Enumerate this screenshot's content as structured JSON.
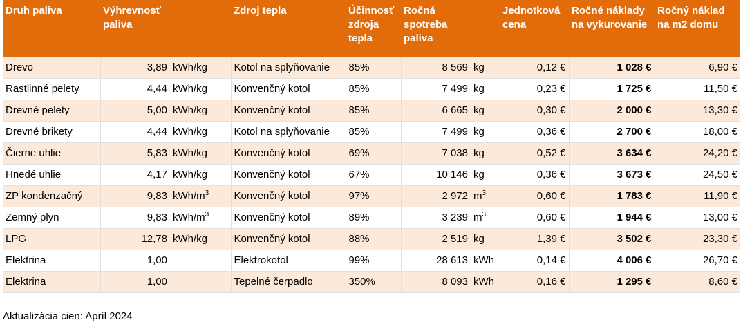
{
  "headers": [
    "Druh paliva",
    "Výhrevnosť paliva",
    "",
    "Zdroj tepla",
    "Účinnosť zdroja tepla",
    "Ročná spotreba paliva",
    "",
    "Jednotková cena",
    "Ročné náklady na vykurovanie",
    "Ročný náklad na m2 domu"
  ],
  "rows": [
    {
      "fuel": "Drevo",
      "value": "3,89",
      "unit": "kWh/kg",
      "source": "Kotol na splyňovanie",
      "eff": "85%",
      "cons": "8 569",
      "cunit": "kg",
      "price": "0,12 €",
      "annual": "1 028 €",
      "per_m2": "6,90 €"
    },
    {
      "fuel": "Rastlinné pelety",
      "value": "4,44",
      "unit": "kWh/kg",
      "source": "Konvenčný kotol",
      "eff": "85%",
      "cons": "7 499",
      "cunit": "kg",
      "price": "0,23 €",
      "annual": "1 725 €",
      "per_m2": "11,50 €"
    },
    {
      "fuel": "Drevné pelety",
      "value": "5,00",
      "unit": "kWh/kg",
      "source": "Konvenčný kotol",
      "eff": "85%",
      "cons": "6 665",
      "cunit": "kg",
      "price": "0,30 €",
      "annual": "2 000 €",
      "per_m2": "13,30 €"
    },
    {
      "fuel": "Drevné brikety",
      "value": "4,44",
      "unit": "kWh/kg",
      "source": "Kotol na splyňovanie",
      "eff": "85%",
      "cons": "7 499",
      "cunit": "kg",
      "price": "0,36 €",
      "annual": "2 700 €",
      "per_m2": "18,00 €"
    },
    {
      "fuel": "Čierne uhlie",
      "value": "5,83",
      "unit": "kWh/kg",
      "source": "Konvenčný kotol",
      "eff": "69%",
      "cons": "7 038",
      "cunit": "kg",
      "price": "0,52 €",
      "annual": "3 634 €",
      "per_m2": "24,20 €"
    },
    {
      "fuel": "Hnedé uhlie",
      "value": "4,17",
      "unit": "kWh/kg",
      "source": "Konvenčný kotol",
      "eff": "67%",
      "cons": "10 146",
      "cunit": "kg",
      "price": "0,36 €",
      "annual": "3 673 €",
      "per_m2": "24,50 €"
    },
    {
      "fuel": "ZP kondenzačný",
      "value": "9,83",
      "unit": "kWh/m",
      "unit_sup": "3",
      "source": "Konvenčný kotol",
      "eff": "97%",
      "cons": "2 972",
      "cunit": "m",
      "cunit_sup": "3",
      "price": "0,60 €",
      "annual": "1 783 €",
      "per_m2": "11,90 €"
    },
    {
      "fuel": "Zemný plyn",
      "value": "9,83",
      "unit": "kWh/m",
      "unit_sup": "3",
      "source": "Konvenčný kotol",
      "eff": "89%",
      "cons": "3 239",
      "cunit": "m",
      "cunit_sup": "3",
      "price": "0,60 €",
      "annual": "1 944 €",
      "per_m2": "13,00 €"
    },
    {
      "fuel": "LPG",
      "value": "12,78",
      "unit": "kWh/kg",
      "source": "Konvenčný kotol",
      "eff": "88%",
      "cons": "2 519",
      "cunit": "kg",
      "price": "1,39 €",
      "annual": "3 502 €",
      "per_m2": "23,30 €"
    },
    {
      "fuel": "Elektrina",
      "value": "1,00",
      "unit": "",
      "source": "Elektrokotol",
      "eff": "99%",
      "cons": "28 613",
      "cunit": "kWh",
      "price": "0,14 €",
      "annual": "4 006 €",
      "per_m2": "26,70 €"
    },
    {
      "fuel": "Elektrina",
      "value": "1,00",
      "unit": "",
      "source": "Tepelné čerpadlo",
      "eff": "350%",
      "cons": "8 093",
      "cunit": "kWh",
      "price": "0,16 €",
      "annual": "1 295 €",
      "per_m2": "8,60 €"
    }
  ],
  "note": "Aktualizácia cien: Apríl 2024"
}
